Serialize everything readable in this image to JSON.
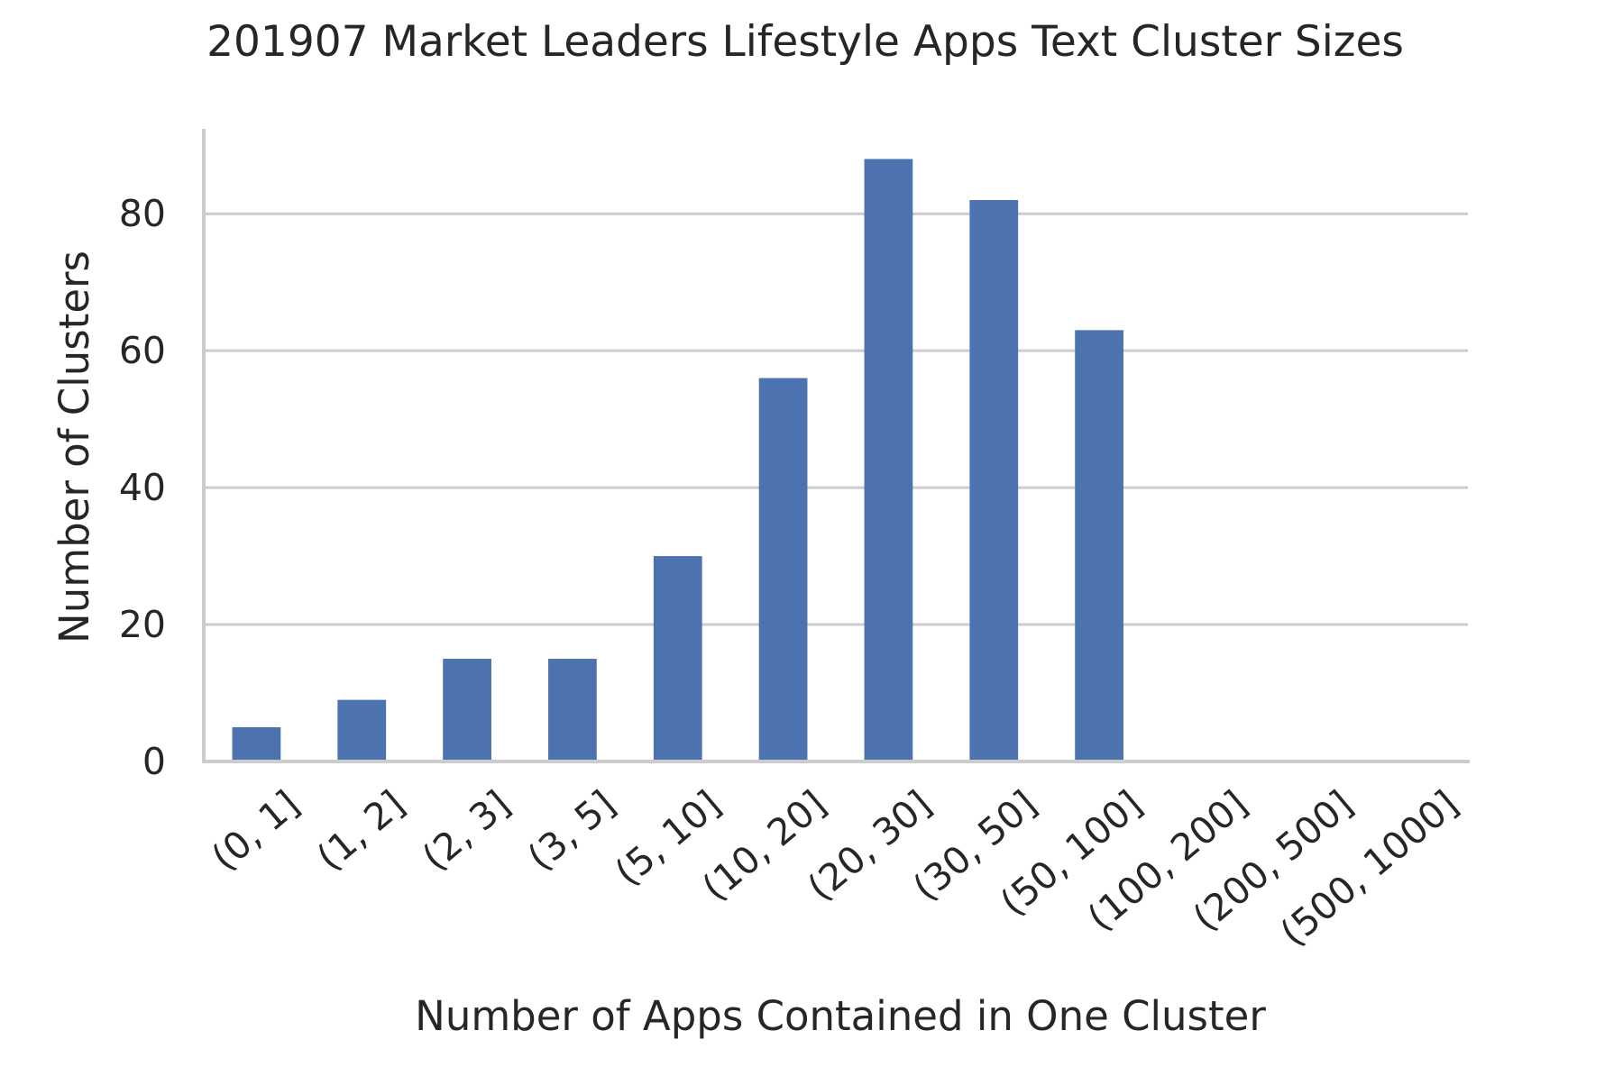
{
  "chart_data": {
    "type": "bar",
    "title": "201907 Market Leaders Lifestyle Apps Text Cluster Sizes",
    "xlabel": "Number of Apps Contained in One Cluster",
    "ylabel": "Number of Clusters",
    "categories": [
      "(0, 1]",
      "(1, 2]",
      "(2, 3]",
      "(3, 5]",
      "(5, 10]",
      "(10, 20]",
      "(20, 30]",
      "(30, 50]",
      "(50, 100]",
      "(100, 200]",
      "(200, 500]",
      "(500, 1000]"
    ],
    "values": [
      5,
      9,
      15,
      15,
      30,
      56,
      88,
      82,
      63,
      0,
      0,
      0
    ],
    "ylim": [
      0,
      92.4
    ],
    "yticks": [
      0,
      20,
      40,
      60,
      80
    ],
    "grid": "horizontal",
    "bar_color": "#4c72b0",
    "grid_color": "#cccccc",
    "text_color": "#262626"
  }
}
